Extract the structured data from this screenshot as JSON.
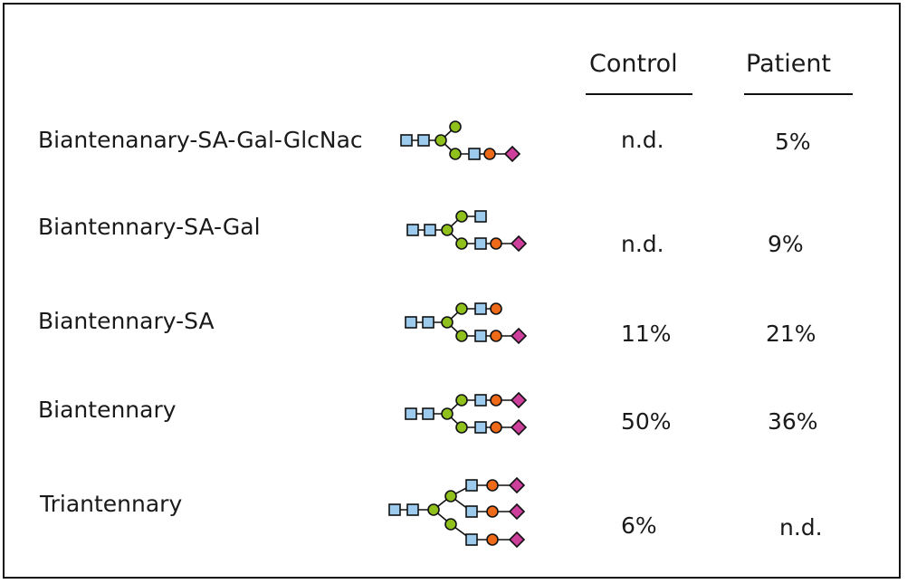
{
  "headers": {
    "control": "Control",
    "patient": "Patient"
  },
  "rows": [
    {
      "name": "Biantenanary-SA-Gal-GlcNac",
      "control": "n.d.",
      "patient": "5%"
    },
    {
      "name": "Biantennary-SA-Gal",
      "control": "n.d.",
      "patient": "9%"
    },
    {
      "name": "Biantennary-SA",
      "control": "11%",
      "patient": "21%"
    },
    {
      "name": "Biantennary",
      "control": "50%",
      "patient": "36%"
    },
    {
      "name": "Triantennary",
      "control": "6%",
      "patient": "n.d."
    }
  ],
  "colors": {
    "glcnac_square": "#9ccbee",
    "mannose_circle": "#8fc01c",
    "galactose_circle": "#ee6a18",
    "sialic_acid_diamond": "#cc3f9a",
    "outline": "#111111"
  },
  "symbol_names": [
    "glcnac-square-icon",
    "mannose-circle-icon",
    "galactose-circle-icon",
    "sialic-acid-diamond-icon"
  ]
}
